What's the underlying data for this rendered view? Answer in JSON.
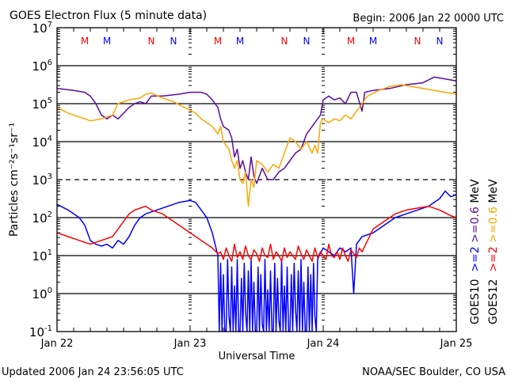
{
  "chart_data": {
    "type": "line",
    "title": "GOES Electron Flux (5 minute data)",
    "begin": "Begin: 2006 Jan 22 0000 UTC",
    "xlabel": "Universal Time",
    "ylabel": "Particles cm⁻²s⁻¹sr⁻¹",
    "x_units": "hours since 2006 Jan 22 0000 UTC",
    "xlim": [
      0,
      72
    ],
    "x_ticks": [
      {
        "h": 0,
        "label": "Jan 22"
      },
      {
        "h": 24,
        "label": "Jan 23"
      },
      {
        "h": 48,
        "label": "Jan 24"
      },
      {
        "h": 72,
        "label": "Jan 25"
      }
    ],
    "yscale": "log",
    "ylim_log10": [
      -1,
      7
    ],
    "y_ticks": [
      {
        "base": "10",
        "exp": "7"
      },
      {
        "base": "10",
        "exp": "6"
      },
      {
        "base": "10",
        "exp": "5"
      },
      {
        "base": "10",
        "exp": "4"
      },
      {
        "base": "10",
        "exp": "3"
      },
      {
        "base": "10",
        "exp": "2"
      },
      {
        "base": "10",
        "exp": "1"
      },
      {
        "base": "10",
        "exp": "0"
      },
      {
        "base": "10",
        "exp": "-1"
      }
    ],
    "solid_gridlines_log10": [
      6,
      5,
      4,
      2,
      1,
      0
    ],
    "dashed_gridlines_log10": [
      3
    ],
    "markers": [
      {
        "h": 5,
        "label": "M",
        "color": "#ff0000"
      },
      {
        "h": 9,
        "label": "M",
        "color": "#0000ff"
      },
      {
        "h": 17,
        "label": "N",
        "color": "#ff0000"
      },
      {
        "h": 21,
        "label": "N",
        "color": "#0000ff"
      },
      {
        "h": 29,
        "label": "M",
        "color": "#ff0000"
      },
      {
        "h": 33,
        "label": "M",
        "color": "#0000ff"
      },
      {
        "h": 41,
        "label": "N",
        "color": "#ff0000"
      },
      {
        "h": 45,
        "label": "N",
        "color": "#0000ff"
      },
      {
        "h": 53,
        "label": "M",
        "color": "#ff0000"
      },
      {
        "h": 57,
        "label": "M",
        "color": "#0000ff"
      },
      {
        "h": 65,
        "label": "N",
        "color": "#ff0000"
      },
      {
        "h": 69,
        "label": "N",
        "color": "#0000ff"
      }
    ],
    "legend": {
      "placement": "right",
      "columns": [
        {
          "satellite": "GOES10",
          "e2": ">=2",
          "e06": ">=0.6",
          "unit": "MeV",
          "e2_color": "#0000ff",
          "e06_color": "#5a0ca0"
        },
        {
          "satellite": "GOES12",
          "e2": ">=2",
          "e06": ">=0.6",
          "unit": "MeV",
          "e2_color": "#ff0000",
          "e06_color": "#ffa500"
        }
      ]
    },
    "series": [
      {
        "name": "GOES10 >=0.6 MeV",
        "color": "#5a0ca0",
        "points_log10": [
          [
            0,
            5.4
          ],
          [
            3,
            5.35
          ],
          [
            5,
            5.3
          ],
          [
            6,
            5.2
          ],
          [
            7,
            5.0
          ],
          [
            8,
            4.7
          ],
          [
            9,
            4.6
          ],
          [
            10,
            4.7
          ],
          [
            11,
            4.6
          ],
          [
            12,
            4.75
          ],
          [
            13,
            4.9
          ],
          [
            14,
            5.0
          ],
          [
            15,
            5.05
          ],
          [
            16,
            5.0
          ],
          [
            17,
            5.2
          ],
          [
            19,
            5.2
          ],
          [
            22,
            5.25
          ],
          [
            24,
            5.3
          ],
          [
            26,
            5.3
          ],
          [
            27,
            5.25
          ],
          [
            28,
            5.1
          ],
          [
            29,
            4.9
          ],
          [
            29.5,
            4.6
          ],
          [
            30,
            4.4
          ],
          [
            31,
            4.3
          ],
          [
            31.5,
            4.1
          ],
          [
            32,
            3.6
          ],
          [
            32.5,
            3.8
          ],
          [
            33,
            3.3
          ],
          [
            33.5,
            3.5
          ],
          [
            34,
            3.2
          ],
          [
            34.5,
            3.0
          ],
          [
            35,
            3.6
          ],
          [
            35.5,
            3.1
          ],
          [
            36,
            2.9
          ],
          [
            37,
            3.3
          ],
          [
            38,
            3.0
          ],
          [
            39,
            3.0
          ],
          [
            40,
            3.2
          ],
          [
            41,
            3.3
          ],
          [
            42,
            3.5
          ],
          [
            43,
            3.7
          ],
          [
            44,
            3.8
          ],
          [
            45,
            4.2
          ],
          [
            46,
            4.4
          ],
          [
            47,
            4.6
          ],
          [
            47.5,
            4.7
          ],
          [
            48,
            5.1
          ],
          [
            49,
            5.2
          ],
          [
            50,
            5.1
          ],
          [
            51,
            5.15
          ],
          [
            52,
            5.0
          ],
          [
            53,
            5.3
          ],
          [
            54,
            5.3
          ],
          [
            55,
            4.8
          ],
          [
            55.5,
            5.3
          ],
          [
            57,
            5.35
          ],
          [
            60,
            5.4
          ],
          [
            63,
            5.5
          ],
          [
            66,
            5.55
          ],
          [
            68,
            5.7
          ],
          [
            70,
            5.65
          ],
          [
            72,
            5.6
          ]
        ]
      },
      {
        "name": "GOES12 >=0.6 MeV",
        "color": "#ffa500",
        "points_log10": [
          [
            0,
            4.9
          ],
          [
            2,
            4.75
          ],
          [
            4,
            4.65
          ],
          [
            6,
            4.55
          ],
          [
            8,
            4.6
          ],
          [
            10,
            4.7
          ],
          [
            11,
            5.0
          ],
          [
            13,
            5.1
          ],
          [
            15,
            5.15
          ],
          [
            16,
            5.25
          ],
          [
            17,
            5.28
          ],
          [
            19,
            5.15
          ],
          [
            21,
            5.05
          ],
          [
            23,
            4.9
          ],
          [
            25,
            4.75
          ],
          [
            26,
            4.6
          ],
          [
            27,
            4.5
          ],
          [
            28,
            4.4
          ],
          [
            29,
            4.2
          ],
          [
            29.5,
            4.4
          ],
          [
            30,
            4.0
          ],
          [
            31,
            3.8
          ],
          [
            31.5,
            3.5
          ],
          [
            32,
            3.3
          ],
          [
            32.5,
            3.5
          ],
          [
            33,
            3.0
          ],
          [
            33.5,
            2.9
          ],
          [
            34,
            3.2
          ],
          [
            34.5,
            2.3
          ],
          [
            35,
            3.0
          ],
          [
            35.5,
            2.8
          ],
          [
            36,
            3.5
          ],
          [
            37,
            3.4
          ],
          [
            38,
            3.2
          ],
          [
            39,
            3.4
          ],
          [
            40,
            3.3
          ],
          [
            41,
            3.7
          ],
          [
            42,
            4.1
          ],
          [
            43,
            4.0
          ],
          [
            44,
            3.8
          ],
          [
            45,
            4.0
          ],
          [
            46,
            3.7
          ],
          [
            46.5,
            3.9
          ],
          [
            47,
            3.7
          ],
          [
            47.5,
            4.5
          ],
          [
            48,
            4.6
          ],
          [
            49,
            4.5
          ],
          [
            50,
            4.6
          ],
          [
            51,
            4.55
          ],
          [
            52,
            4.7
          ],
          [
            53,
            4.6
          ],
          [
            54,
            4.8
          ],
          [
            55,
            5.0
          ],
          [
            56,
            5.2
          ],
          [
            58,
            5.35
          ],
          [
            60,
            5.45
          ],
          [
            62,
            5.5
          ],
          [
            64,
            5.45
          ],
          [
            66,
            5.4
          ],
          [
            68,
            5.35
          ],
          [
            70,
            5.3
          ],
          [
            72,
            5.25
          ]
        ]
      },
      {
        "name": "GOES10 >=2 MeV",
        "color": "#0000ff",
        "points_log10": [
          [
            0,
            2.35
          ],
          [
            2,
            2.2
          ],
          [
            4,
            2.0
          ],
          [
            5,
            1.8
          ],
          [
            6,
            1.4
          ],
          [
            7,
            1.3
          ],
          [
            8,
            1.25
          ],
          [
            9,
            1.3
          ],
          [
            10,
            1.2
          ],
          [
            11,
            1.4
          ],
          [
            12,
            1.3
          ],
          [
            13,
            1.5
          ],
          [
            14,
            1.8
          ],
          [
            15,
            2.0
          ],
          [
            16,
            2.1
          ],
          [
            18,
            2.2
          ],
          [
            20,
            2.3
          ],
          [
            22,
            2.4
          ],
          [
            24,
            2.45
          ],
          [
            25,
            2.4
          ],
          [
            26,
            2.2
          ],
          [
            27,
            2.0
          ],
          [
            28,
            1.6
          ],
          [
            28.5,
            1.3
          ],
          [
            29,
            1.0
          ]
        ],
        "noise": {
          "start": 29.25,
          "step": 0.25,
          "values_log10": [
            -1,
            0.8,
            -1,
            0.5,
            -1,
            -1,
            0.9,
            -0.6,
            -1,
            0.7,
            -1,
            0.2,
            -1,
            0.9,
            -1,
            -1,
            0.4,
            -1,
            0.8,
            -0.5,
            -1,
            0.6,
            -1,
            0.9,
            -1,
            0.3,
            -1,
            -1,
            0.7,
            -1,
            0.5,
            -0.8,
            -1,
            0.9,
            -1,
            0.1,
            -1,
            0.6,
            -1,
            -1,
            0.8,
            -1,
            0.4,
            -0.7,
            -1,
            0.9,
            -1,
            0.2,
            -1,
            0.7,
            -1,
            -1,
            0.5,
            -1,
            0.8,
            -0.4,
            -1,
            0.6,
            -1,
            0.9,
            -1,
            0.3,
            -1,
            -1,
            0.7,
            -1,
            0.5,
            -1,
            0.8,
            -0.6,
            -1,
            0.9,
            1.0
          ]
        },
        "tail_log10": [
          [
            48,
            1.2
          ],
          [
            49,
            1.1
          ],
          [
            50,
            1.0
          ],
          [
            51,
            1.2
          ],
          [
            52,
            1.1
          ],
          [
            53,
            1.2
          ],
          [
            53.5,
            0.0
          ],
          [
            54,
            1.3
          ],
          [
            55,
            1.5
          ],
          [
            57,
            1.6
          ],
          [
            59,
            1.8
          ],
          [
            61,
            2.0
          ],
          [
            63,
            2.1
          ],
          [
            65,
            2.2
          ],
          [
            67,
            2.3
          ],
          [
            69,
            2.5
          ],
          [
            70,
            2.7
          ],
          [
            71,
            2.55
          ],
          [
            72,
            2.6
          ]
        ]
      },
      {
        "name": "GOES12 >=2 MeV",
        "color": "#ff0000",
        "points_log10": [
          [
            0,
            1.6
          ],
          [
            2,
            1.5
          ],
          [
            4,
            1.4
          ],
          [
            6,
            1.3
          ],
          [
            8,
            1.4
          ],
          [
            10,
            1.5
          ],
          [
            11,
            1.7
          ],
          [
            12,
            1.9
          ],
          [
            13,
            2.1
          ],
          [
            14,
            2.2
          ],
          [
            15,
            2.25
          ],
          [
            16,
            2.3
          ],
          [
            17,
            2.2
          ],
          [
            19,
            2.1
          ],
          [
            21,
            1.9
          ],
          [
            23,
            1.7
          ],
          [
            25,
            1.5
          ],
          [
            27,
            1.3
          ],
          [
            28,
            1.2
          ],
          [
            29,
            1.05
          ]
        ],
        "noise": {
          "start": 29.5,
          "step": 0.5,
          "values_log10": [
            1.1,
            0.9,
            1.2,
            1.0,
            0.85,
            1.3,
            0.95,
            1.1,
            0.9,
            1.25,
            1.0,
            0.9,
            1.15,
            1.05,
            0.85,
            1.2,
            1.0,
            0.95,
            1.3,
            0.9,
            1.1,
            1.0,
            0.85,
            1.2,
            0.95,
            1.1,
            1.0,
            0.9,
            1.25,
            1.05,
            0.9,
            1.15,
            1.0,
            0.85,
            1.2,
            0.95,
            1.1,
            1.0,
            0.9,
            1.3,
            1.0,
            0.95,
            1.1,
            0.9,
            1.2,
            1.0,
            0.85,
            1.15,
            1.05,
            0.95,
            1.2
          ]
        },
        "tail_log10": [
          [
            55,
            1.1
          ],
          [
            56,
            1.4
          ],
          [
            57,
            1.7
          ],
          [
            59,
            1.9
          ],
          [
            61,
            2.1
          ],
          [
            63,
            2.2
          ],
          [
            65,
            2.25
          ],
          [
            67,
            2.3
          ],
          [
            69,
            2.2
          ],
          [
            71,
            2.05
          ],
          [
            72,
            2.0
          ]
        ]
      }
    ]
  },
  "footer": {
    "updated": "Updated 2006 Jan 24 23:56:05 UTC",
    "credit": "NOAA/SEC Boulder, CO USA"
  }
}
